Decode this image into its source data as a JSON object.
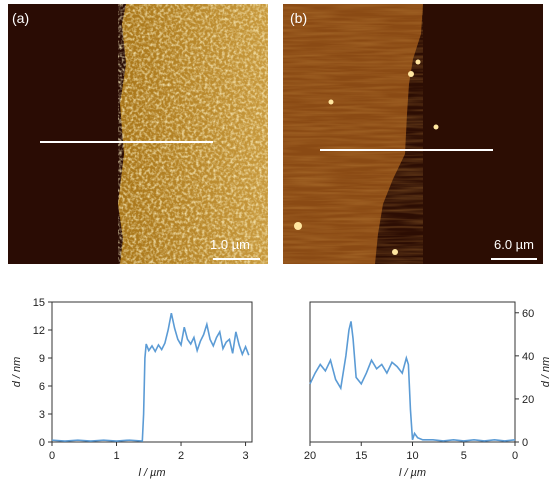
{
  "panels": {
    "a": {
      "label": "(a)",
      "scalebar": "1.0 µm"
    },
    "b": {
      "label": "(b)",
      "scalebar": "6.0 µm"
    }
  },
  "chart_data": [
    {
      "type": "line",
      "panel": "a",
      "xlabel": "l / µm",
      "ylabel": "d / nm",
      "xlim": [
        0,
        3.1
      ],
      "ylim": [
        0,
        15
      ],
      "xticks": [
        "0",
        "1",
        "2",
        "3"
      ],
      "yticks": [
        "0",
        "3",
        "6",
        "9",
        "12",
        "15"
      ],
      "x": [
        0,
        0.2,
        0.4,
        0.6,
        0.8,
        1.0,
        1.2,
        1.4,
        1.42,
        1.44,
        1.46,
        1.5,
        1.55,
        1.6,
        1.65,
        1.7,
        1.75,
        1.8,
        1.85,
        1.9,
        1.95,
        2.0,
        2.05,
        2.1,
        2.15,
        2.2,
        2.25,
        2.3,
        2.35,
        2.4,
        2.45,
        2.5,
        2.55,
        2.6,
        2.65,
        2.7,
        2.75,
        2.8,
        2.85,
        2.9,
        2.95,
        3.0,
        3.05
      ],
      "y": [
        0.2,
        0.1,
        0.2,
        0.1,
        0.2,
        0.1,
        0.2,
        0.1,
        3.0,
        9.0,
        10.5,
        9.8,
        10.3,
        9.7,
        10.4,
        9.9,
        10.6,
        12.0,
        13.8,
        12.2,
        11.0,
        10.4,
        12.3,
        11.0,
        10.5,
        11.2,
        9.8,
        10.8,
        11.5,
        12.6,
        11.0,
        10.3,
        11.2,
        11.8,
        10.0,
        10.7,
        11.0,
        9.5,
        11.8,
        10.4,
        9.4,
        10.2,
        9.3
      ],
      "color": "#5b9bd5"
    },
    {
      "type": "line",
      "panel": "b",
      "xlabel": "l / µm",
      "ylabel": "d / nm",
      "xlim": [
        20,
        0
      ],
      "ylim": [
        0,
        65
      ],
      "xticks": [
        "20",
        "15",
        "10",
        "5",
        "0"
      ],
      "yticks": [
        "0",
        "20",
        "40",
        "60"
      ],
      "x": [
        20,
        19.5,
        19,
        18.5,
        18,
        17.5,
        17,
        16.5,
        16.2,
        16,
        15.8,
        15.5,
        15,
        14.5,
        14,
        13.5,
        13,
        12.5,
        12,
        11.5,
        11,
        10.6,
        10.4,
        10.2,
        10.0,
        9.8,
        9.5,
        9,
        8,
        7,
        6,
        5,
        4,
        3,
        2,
        1,
        0
      ],
      "y": [
        27,
        32,
        36,
        33,
        38,
        29,
        25,
        40,
        52,
        56,
        48,
        30,
        27,
        32,
        38,
        34,
        36,
        32,
        37,
        35,
        32,
        39,
        36,
        15,
        1,
        4,
        2,
        1,
        1,
        0.5,
        1,
        0.5,
        1,
        0.5,
        1,
        0.5,
        1
      ],
      "color": "#5b9bd5"
    }
  ]
}
